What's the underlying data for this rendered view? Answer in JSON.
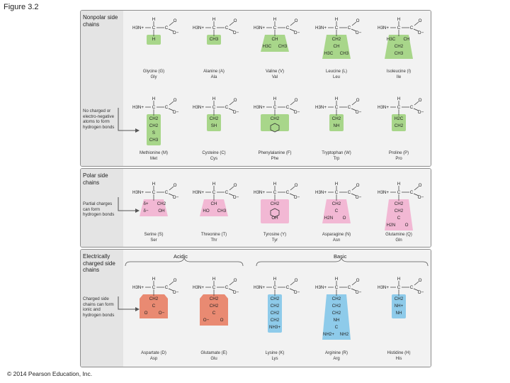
{
  "figure_label": "Figure 3.2",
  "copyright": "© 2014 Pearson Education, Inc.",
  "sections": {
    "nonpolar": {
      "title": "Nonpolar side chains",
      "note": "No charged or electro-negative atoms to form hydrogen bonds"
    },
    "polar": {
      "title": "Polar side chains",
      "note": "Partial charges can form hydrogen bonds"
    },
    "charged": {
      "title": "Electrically charged side chains",
      "note": "Charged side chains can form ionic and hydrogen bonds",
      "acidic_label": "Acidic",
      "basic_label": "Basic"
    }
  },
  "colors": {
    "nonpolar": "#a8d68a",
    "polar": "#f2b8d4",
    "acidic": "#e98a72",
    "basic": "#8ecbea"
  },
  "amino_acids": [
    {
      "name": "Glycine (G)",
      "abbr": "Gly",
      "sidechain": [
        "H"
      ]
    },
    {
      "name": "Alanine (A)",
      "abbr": "Ala",
      "sidechain": [
        "CH3"
      ]
    },
    {
      "name": "Valine (V)",
      "abbr": "Val",
      "sidechain": [
        "CH",
        "H3C CH3"
      ]
    },
    {
      "name": "Leucine (L)",
      "abbr": "Leu",
      "sidechain": [
        "CH2",
        "CH",
        "H3C CH3"
      ]
    },
    {
      "name": "Isoleucine (I)",
      "abbr": "Ile",
      "sidechain": [
        "H3C CH",
        "CH2",
        "CH3"
      ]
    },
    {
      "name": "Methionine (M)",
      "abbr": "Met",
      "sidechain": [
        "CH2",
        "CH2",
        "S",
        "CH3"
      ]
    },
    {
      "name": "Cysteine (C)",
      "abbr": "Cys",
      "sidechain": [
        "CH2",
        "SH"
      ]
    },
    {
      "name": "Phenylalanine (F)",
      "abbr": "Phe",
      "sidechain": [
        "CH2",
        "ring"
      ]
    },
    {
      "name": "Tryptophan (W)",
      "abbr": "Trp",
      "sidechain": [
        "CH2",
        "NH"
      ]
    },
    {
      "name": "Proline (P)",
      "abbr": "Pro",
      "sidechain": [
        "H2C",
        "CH2"
      ]
    },
    {
      "name": "Serine (S)",
      "abbr": "Ser",
      "sidechain": [
        "δ+ CH2",
        "δ− OH"
      ]
    },
    {
      "name": "Threonine (T)",
      "abbr": "Thr",
      "sidechain": [
        "CH",
        "HO CH3"
      ]
    },
    {
      "name": "Tyrosine (Y)",
      "abbr": "Tyr",
      "sidechain": [
        "CH2",
        "ring",
        "OH"
      ]
    },
    {
      "name": "Asparagine (N)",
      "abbr": "Asn",
      "sidechain": [
        "CH2",
        "C",
        "H2N O"
      ]
    },
    {
      "name": "Glutamine (Q)",
      "abbr": "Gln",
      "sidechain": [
        "CH2",
        "CH2",
        "C",
        "H2N O"
      ]
    },
    {
      "name": "Aspartate (D)",
      "abbr": "Asp",
      "sidechain": [
        "CH2",
        "C",
        "O O−"
      ]
    },
    {
      "name": "Glutamate (E)",
      "abbr": "Glu",
      "sidechain": [
        "CH2",
        "CH2",
        "C",
        "O− O"
      ]
    },
    {
      "name": "Lysine (K)",
      "abbr": "Lys",
      "sidechain": [
        "CH2",
        "CH2",
        "CH2",
        "CH2",
        "NH3+"
      ]
    },
    {
      "name": "Arginine (R)",
      "abbr": "Arg",
      "sidechain": [
        "CH2",
        "CH2",
        "CH2",
        "NH",
        "C",
        "NH2+ NH2"
      ]
    },
    {
      "name": "Histidine (H)",
      "abbr": "His",
      "sidechain": [
        "CH2",
        "NH+",
        "NH"
      ]
    }
  ],
  "backbone": {
    "h": "H",
    "n": "H3N+",
    "c": "C",
    "o": "O",
    "om": "O−"
  }
}
